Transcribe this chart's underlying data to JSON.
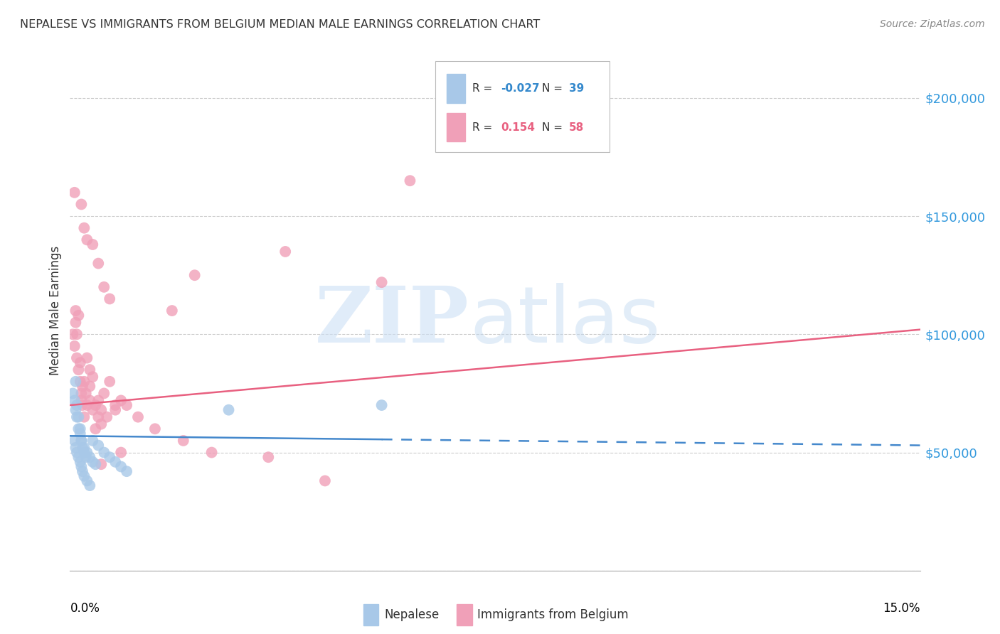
{
  "title": "NEPALESE VS IMMIGRANTS FROM BELGIUM MEDIAN MALE EARNINGS CORRELATION CHART",
  "source": "Source: ZipAtlas.com",
  "ylabel": "Median Male Earnings",
  "xlim": [
    0.0,
    15.0
  ],
  "ylim": [
    0,
    220000
  ],
  "yticks": [
    0,
    50000,
    100000,
    150000,
    200000
  ],
  "ytick_labels": [
    "",
    "$50,000",
    "$100,000",
    "$150,000",
    "$200,000"
  ],
  "blue_color": "#A8C8E8",
  "pink_color": "#F0A0B8",
  "blue_line_color": "#4488CC",
  "pink_line_color": "#E86080",
  "blue_line_x0": 0.0,
  "blue_line_y0": 57000,
  "blue_line_x1": 15.0,
  "blue_line_y1": 53000,
  "blue_solid_end": 5.5,
  "pink_line_x0": 0.0,
  "pink_line_y0": 70000,
  "pink_line_x1": 15.0,
  "pink_line_y1": 102000,
  "nepalese_x": [
    0.05,
    0.08,
    0.1,
    0.12,
    0.15,
    0.18,
    0.2,
    0.22,
    0.25,
    0.28,
    0.1,
    0.12,
    0.15,
    0.18,
    0.2,
    0.25,
    0.3,
    0.35,
    0.4,
    0.45,
    0.08,
    0.1,
    0.12,
    0.15,
    0.18,
    0.2,
    0.22,
    0.25,
    0.3,
    0.35,
    0.4,
    0.5,
    0.6,
    0.7,
    0.8,
    0.9,
    1.0,
    2.8,
    5.5
  ],
  "nepalese_y": [
    75000,
    72000,
    68000,
    65000,
    60000,
    58000,
    55000,
    52000,
    50000,
    48000,
    80000,
    70000,
    65000,
    60000,
    55000,
    52000,
    50000,
    48000,
    46000,
    45000,
    55000,
    52000,
    50000,
    48000,
    46000,
    44000,
    42000,
    40000,
    38000,
    36000,
    55000,
    53000,
    50000,
    48000,
    46000,
    44000,
    42000,
    68000,
    70000
  ],
  "belgium_x": [
    0.05,
    0.08,
    0.1,
    0.12,
    0.15,
    0.18,
    0.2,
    0.22,
    0.25,
    0.28,
    0.3,
    0.35,
    0.4,
    0.45,
    0.5,
    0.55,
    0.6,
    0.65,
    0.7,
    0.8,
    0.1,
    0.12,
    0.15,
    0.18,
    0.2,
    0.22,
    0.25,
    0.3,
    0.35,
    0.4,
    0.45,
    0.5,
    0.55,
    0.8,
    0.9,
    1.0,
    1.2,
    1.5,
    2.0,
    2.5,
    0.2,
    0.25,
    0.3,
    0.4,
    0.5,
    0.6,
    0.7,
    0.9,
    3.5,
    4.5,
    5.5,
    6.0,
    0.08,
    3.8,
    2.2,
    1.8,
    0.35,
    0.55
  ],
  "belgium_y": [
    100000,
    95000,
    110000,
    90000,
    85000,
    80000,
    75000,
    70000,
    80000,
    75000,
    90000,
    78000,
    82000,
    70000,
    72000,
    68000,
    75000,
    65000,
    80000,
    70000,
    105000,
    100000,
    108000,
    88000,
    72000,
    78000,
    65000,
    70000,
    72000,
    68000,
    60000,
    65000,
    62000,
    68000,
    72000,
    70000,
    65000,
    60000,
    55000,
    50000,
    155000,
    145000,
    140000,
    138000,
    130000,
    120000,
    115000,
    50000,
    48000,
    38000,
    122000,
    165000,
    160000,
    135000,
    125000,
    110000,
    85000,
    45000
  ]
}
